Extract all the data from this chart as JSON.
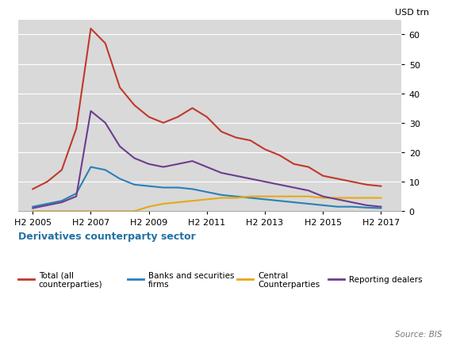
{
  "x_labels": [
    "H2 2005",
    "H2 2007",
    "H2 2009",
    "H2 2011",
    "H2 2013",
    "H2 2015",
    "H2 2017"
  ],
  "x_values": [
    2005.5,
    2006.0,
    2006.5,
    2007.0,
    2007.5,
    2008.0,
    2008.5,
    2009.0,
    2009.5,
    2010.0,
    2010.5,
    2011.0,
    2011.5,
    2012.0,
    2012.5,
    2013.0,
    2013.5,
    2014.0,
    2014.5,
    2015.0,
    2015.5,
    2016.0,
    2016.5,
    2017.0,
    2017.5
  ],
  "total": [
    7.5,
    10,
    14,
    28,
    62,
    57,
    42,
    36,
    32,
    30,
    32,
    35,
    32,
    27,
    25,
    24,
    21,
    19,
    16,
    15,
    12,
    11,
    10,
    9,
    8.5
  ],
  "banks": [
    1.5,
    2.5,
    3.5,
    6,
    15,
    14,
    11,
    9,
    8.5,
    8,
    8,
    7.5,
    6.5,
    5.5,
    5,
    4.5,
    4,
    3.5,
    3,
    2.5,
    2,
    1.5,
    1.5,
    1.2,
    1.0
  ],
  "central": [
    0,
    0,
    0,
    0,
    0,
    0,
    0,
    0,
    1.5,
    2.5,
    3,
    3.5,
    4,
    4.5,
    4.5,
    5,
    5,
    5,
    5,
    5,
    4.5,
    4.5,
    4.5,
    4.5,
    4.5
  ],
  "reporting": [
    1.0,
    2.0,
    3.0,
    5,
    34,
    30,
    22,
    18,
    16,
    15,
    16,
    17,
    15,
    13,
    12,
    11,
    10,
    9,
    8,
    7,
    5,
    4,
    3,
    2,
    1.5
  ],
  "colors": {
    "total": "#c0392b",
    "banks": "#2980b9",
    "central": "#e6a817",
    "reporting": "#6c3d8f"
  },
  "ylim": [
    0,
    65
  ],
  "yticks": [
    0,
    10,
    20,
    30,
    40,
    50,
    60
  ],
  "x_tick_positions": [
    2005.5,
    2007.5,
    2009.5,
    2011.5,
    2013.5,
    2015.5,
    2017.5
  ],
  "xlim": [
    2005.0,
    2018.2
  ],
  "ylabel": "USD trn",
  "bg_color": "#d9d9d9",
  "legend_title": "Derivatives counterparty sector",
  "legend_title_color": "#2471a3",
  "source_text": "Source: BIS",
  "legend_items": [
    {
      "label": "Total (all\ncounterparties)",
      "color": "#c0392b"
    },
    {
      "label": "Banks and securities\nfirms",
      "color": "#2980b9"
    },
    {
      "label": "Central\nCounterparties",
      "color": "#e6a817"
    },
    {
      "label": "Reporting dealers",
      "color": "#6c3d8f"
    }
  ]
}
